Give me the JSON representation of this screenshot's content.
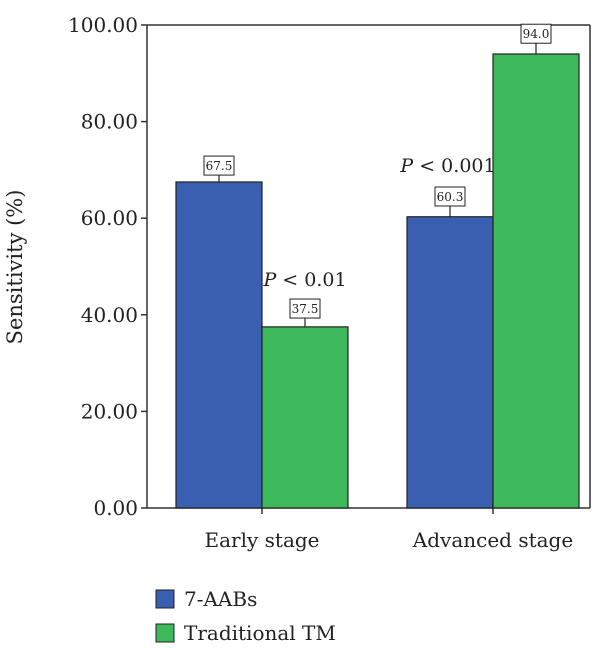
{
  "chart_data": {
    "type": "bar",
    "title": "",
    "xlabel": "",
    "ylabel": "Sensitivity (%)",
    "ylim": [
      0,
      100
    ],
    "yticks": [
      "0.00",
      "20.00",
      "40.00",
      "60.00",
      "80.00",
      "100.00"
    ],
    "ytick_values": [
      0,
      20,
      40,
      60,
      80,
      100
    ],
    "categories": [
      "Early stage",
      "Advanced stage"
    ],
    "series": [
      {
        "name": "7-AABs",
        "color": "#3b5fb0",
        "values": [
          67.5,
          60.3
        ],
        "labels": [
          "67.5",
          "60.3"
        ],
        "errors": [
          0.6,
          1.4
        ]
      },
      {
        "name": "Traditional TM",
        "color": "#3db85a",
        "values": [
          37.5,
          94.0
        ],
        "labels": [
          "37.5",
          "94.0"
        ],
        "errors": [
          1.0,
          1.4
        ]
      }
    ],
    "annotations": [
      {
        "category_index": 0,
        "italic": "P",
        "text": " < 0.01"
      },
      {
        "category_index": 1,
        "italic": "P",
        "text": " < 0.001"
      }
    ],
    "legend_position": "bottom-left",
    "grid": false
  }
}
